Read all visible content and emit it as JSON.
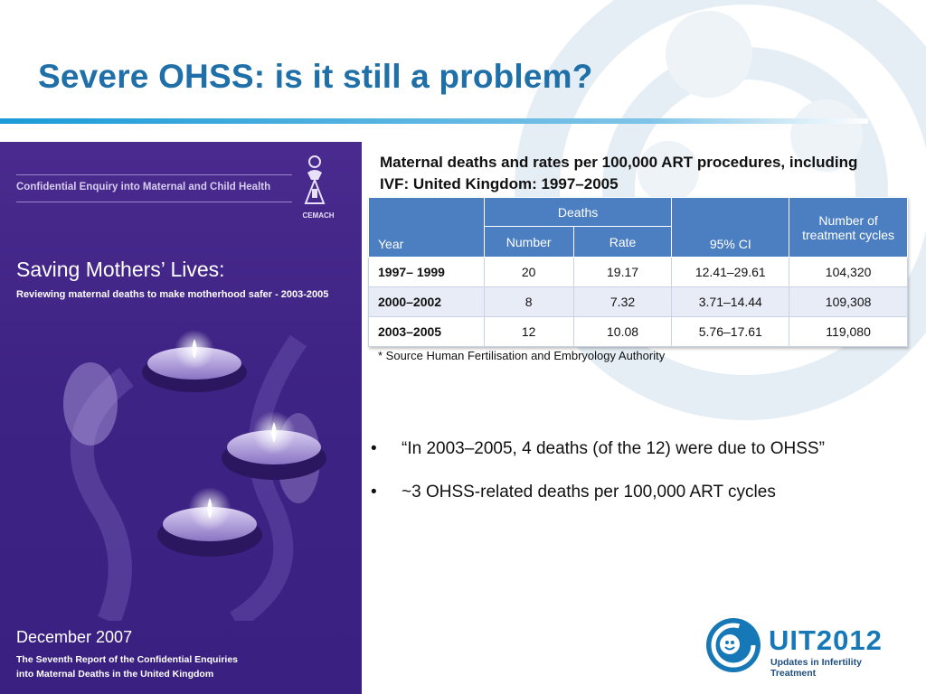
{
  "slide": {
    "title": "Severe OHSS: is it still a problem?"
  },
  "cover": {
    "enquiry": "Confidential Enquiry into Maternal and Child Health",
    "emblem_label": "CEMACH",
    "title": "Saving Mothers’ Lives:",
    "subtitle": "Reviewing maternal deaths to make motherhood safer - 2003-2005",
    "date": "December 2007",
    "report_line1": "The Seventh Report of the Confidential Enquiries",
    "report_line2": "into Maternal Deaths in the United Kingdom"
  },
  "table": {
    "caption": "Maternal deaths and rates per 100,000 ART procedures, including IVF: United Kingdom: 1997–2005",
    "headers": {
      "year": "Year",
      "deaths": "Deaths",
      "number": "Number",
      "rate": "Rate",
      "ci": "95% CI",
      "cycles": "Number of treatment cycles"
    },
    "rows": [
      {
        "year": "1997– 1999",
        "number": "20",
        "rate": "19.17",
        "ci": "12.41–29.61",
        "cycles": "104,320"
      },
      {
        "year": "2000–2002",
        "number": "8",
        "rate": "7.32",
        "ci": "3.71–14.44",
        "cycles": "109,308"
      },
      {
        "year": "2003–2005",
        "number": "12",
        "rate": "10.08",
        "ci": "5.76–17.61",
        "cycles": "119,080"
      }
    ],
    "source": "* Source Human Fertilisation and Embryology Authority"
  },
  "bullets": [
    "“In 2003–2005, 4 deaths (of the 12) were due to OHSS”",
    "~3 OHSS-related deaths per 100,000 ART cycles"
  ],
  "logo": {
    "wordmark": "UIT2012",
    "tagline": "Updates in Infertility Treatment"
  },
  "colors": {
    "title": "#1f6fa8",
    "table_header": "#4c7fc1",
    "cover_purple": "#3d2384"
  }
}
